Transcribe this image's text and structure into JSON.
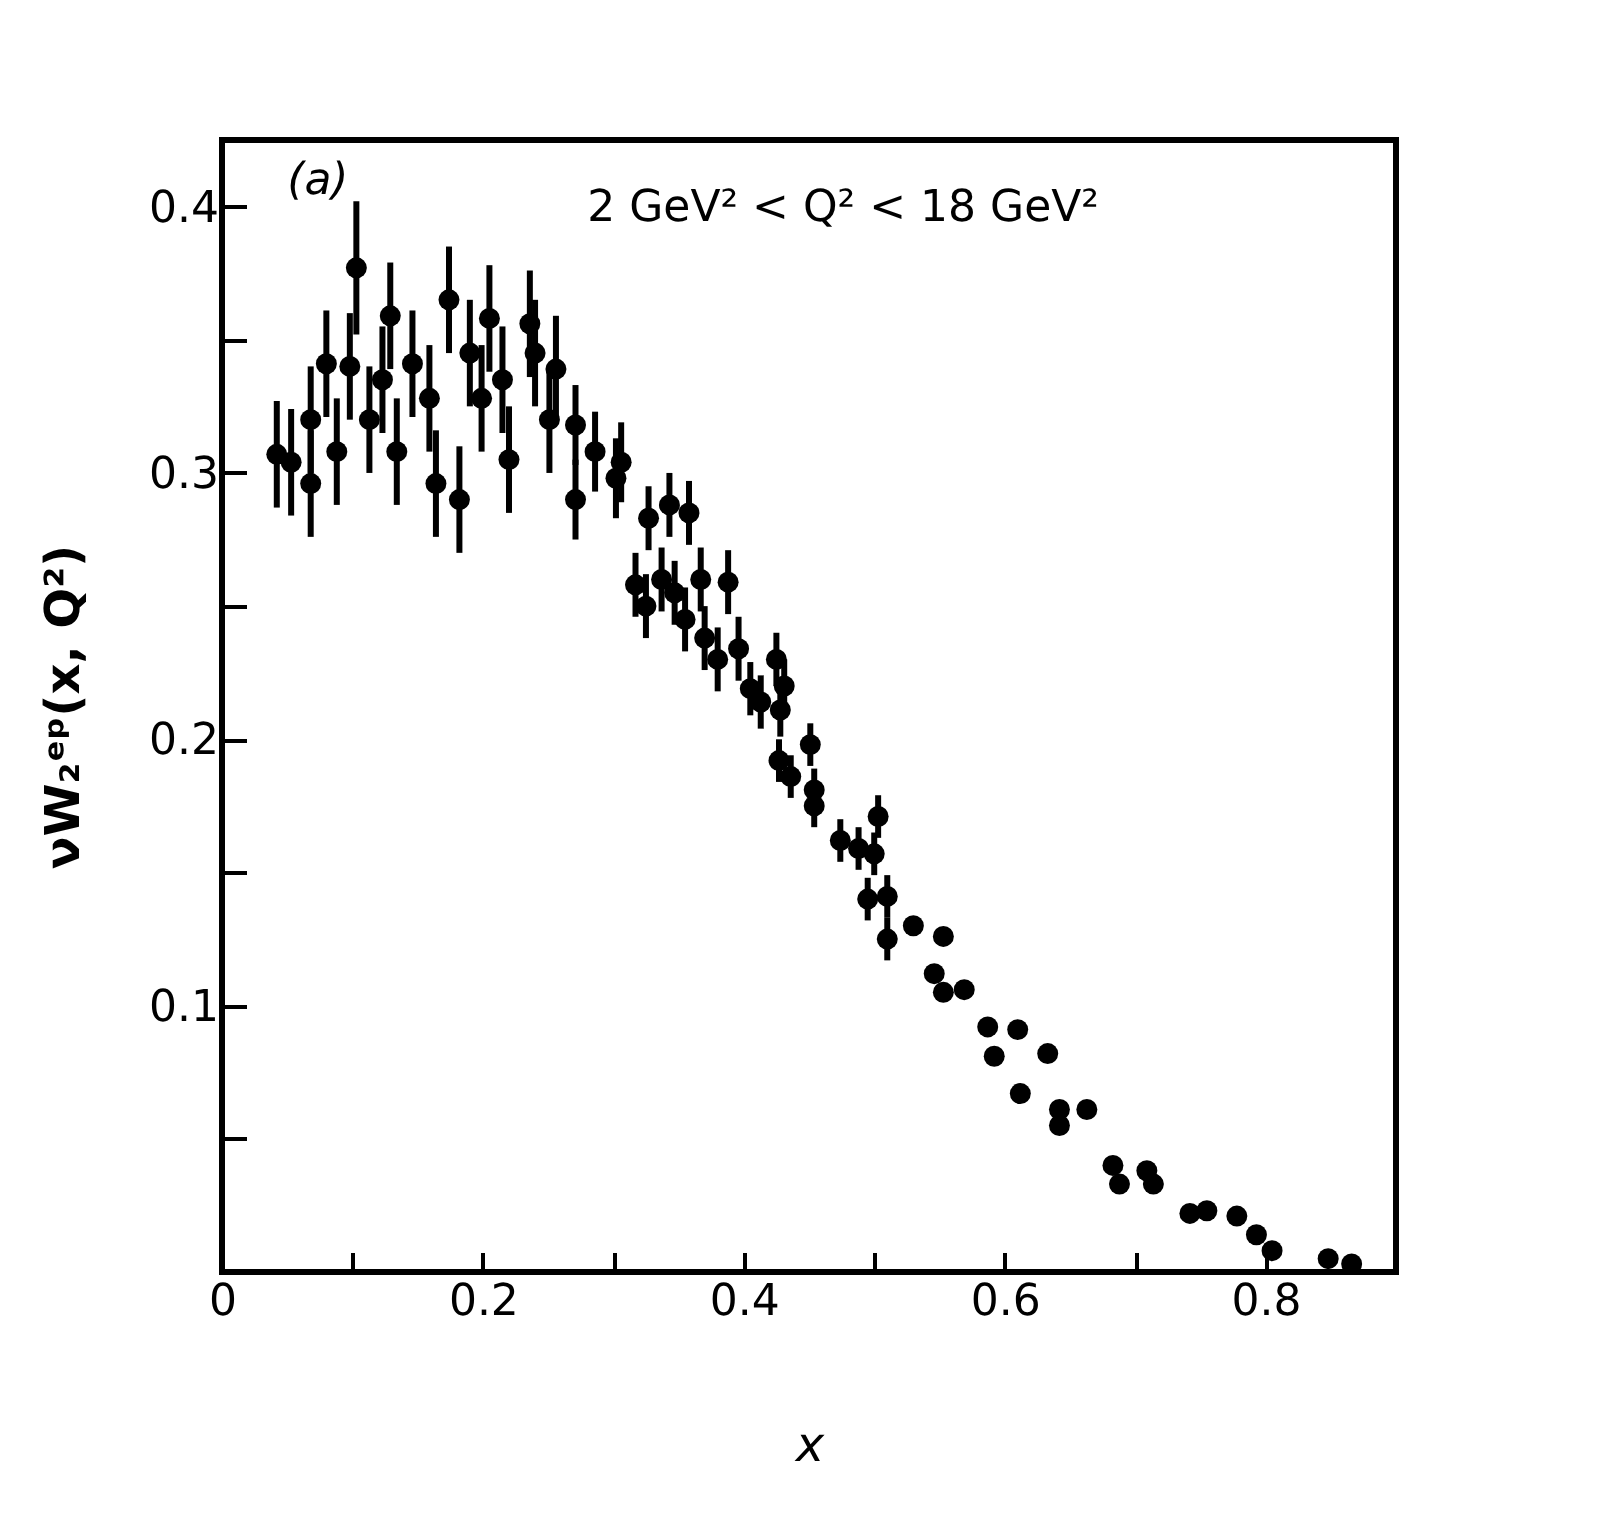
{
  "chart_data": {
    "type": "scatter",
    "xlabel": "x",
    "ylabel": "νW₂ᵉᵖ(x, Q²)",
    "annotations": [
      "(a)",
      "2 GeV² < Q² < 18 GeV²"
    ],
    "xlim": [
      0,
      0.9
    ],
    "ylim": [
      0,
      0.425
    ],
    "xticks": [
      0,
      {
        "value": 0.1,
        "label": null
      },
      0.2,
      {
        "value": 0.3,
        "label": null
      },
      0.4,
      {
        "value": 0.5,
        "label": null
      },
      0.6,
      {
        "value": 0.7,
        "label": null
      },
      0.8,
      {
        "value": 0.9,
        "label": null
      }
    ],
    "yticks": [
      {
        "value": 0.05,
        "label": null
      },
      0.1,
      {
        "value": 0.15,
        "label": null
      },
      0.2,
      {
        "value": 0.25,
        "label": null
      },
      0.3,
      {
        "value": 0.35,
        "label": null
      },
      0.4
    ],
    "marker": "circle",
    "grid": false,
    "series": [
      {
        "color": "#000000",
        "x": [
          0.042,
          0.053,
          0.068,
          0.068,
          0.08,
          0.088,
          0.103,
          0.098,
          0.113,
          0.129,
          0.134,
          0.123,
          0.146,
          0.159,
          0.174,
          0.164,
          0.182,
          0.19,
          0.205,
          0.199,
          0.22,
          0.215,
          0.236,
          0.24,
          0.256,
          0.251,
          0.271,
          0.271,
          0.286,
          0.302,
          0.306,
          0.327,
          0.343,
          0.358,
          0.317,
          0.337,
          0.367,
          0.388,
          0.325,
          0.347,
          0.355,
          0.37,
          0.38,
          0.396,
          0.405,
          0.413,
          0.425,
          0.431,
          0.428,
          0.427,
          0.436,
          0.451,
          0.454,
          0.454,
          0.474,
          0.488,
          0.503,
          0.5,
          0.495,
          0.51,
          0.51,
          0.53,
          0.553,
          0.546,
          0.569,
          0.553,
          0.587,
          0.61,
          0.592,
          0.633,
          0.612,
          0.642,
          0.642,
          0.663,
          0.683,
          0.688,
          0.714,
          0.709,
          0.742,
          0.755,
          0.778,
          0.793,
          0.805,
          0.848,
          0.866
        ],
        "values": [
          0.307,
          0.304,
          0.296,
          0.32,
          0.341,
          0.308,
          0.377,
          0.34,
          0.32,
          0.359,
          0.308,
          0.335,
          0.341,
          0.328,
          0.365,
          0.296,
          0.29,
          0.345,
          0.358,
          0.328,
          0.305,
          0.335,
          0.356,
          0.345,
          0.339,
          0.32,
          0.318,
          0.29,
          0.308,
          0.298,
          0.304,
          0.283,
          0.288,
          0.285,
          0.258,
          0.26,
          0.26,
          0.259,
          0.25,
          0.255,
          0.245,
          0.238,
          0.23,
          0.234,
          0.219,
          0.214,
          0.23,
          0.22,
          0.211,
          0.192,
          0.186,
          0.198,
          0.181,
          0.175,
          0.162,
          0.159,
          0.171,
          0.157,
          0.14,
          0.141,
          0.125,
          0.13,
          0.126,
          0.112,
          0.106,
          0.105,
          0.092,
          0.091,
          0.081,
          0.082,
          0.067,
          0.055,
          0.061,
          0.061,
          0.04,
          0.033,
          0.033,
          0.038,
          0.022,
          0.023,
          0.021,
          0.014,
          0.008,
          0.005,
          0.003
        ],
        "errors": [
          0.02,
          0.02,
          0.02,
          0.02,
          0.02,
          0.02,
          0.025,
          0.02,
          0.02,
          0.02,
          0.02,
          0.02,
          0.02,
          0.02,
          0.02,
          0.02,
          0.02,
          0.02,
          0.02,
          0.02,
          0.02,
          0.02,
          0.02,
          0.02,
          0.02,
          0.02,
          0.015,
          0.015,
          0.015,
          0.015,
          0.015,
          0.012,
          0.012,
          0.012,
          0.012,
          0.012,
          0.012,
          0.012,
          0.012,
          0.012,
          0.012,
          0.012,
          0.012,
          0.012,
          0.01,
          0.01,
          0.01,
          0.01,
          0.01,
          0.008,
          0.008,
          0.008,
          0.008,
          0.008,
          0.008,
          0.008,
          0.008,
          0.008,
          0.008,
          0.008,
          0.008,
          null,
          null,
          null,
          null,
          null,
          null,
          null,
          null,
          null,
          null,
          null,
          null,
          null,
          null,
          null,
          null,
          null,
          null,
          null,
          null,
          null,
          null,
          null,
          null
        ]
      }
    ]
  }
}
